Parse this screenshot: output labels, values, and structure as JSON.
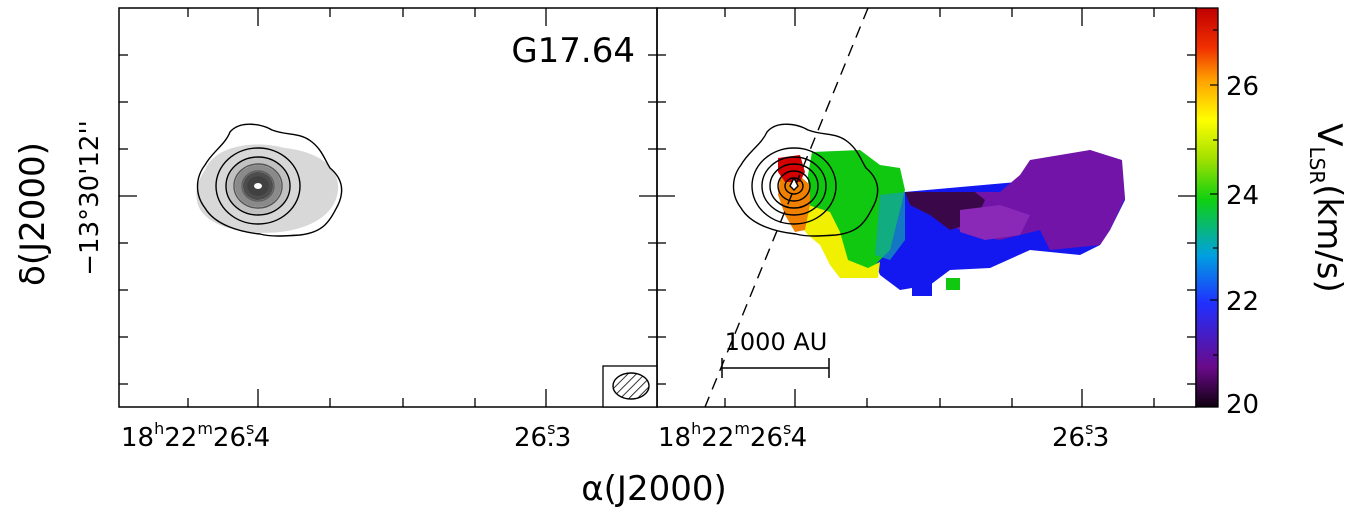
{
  "chart_data": [
    {
      "type": "heatmap",
      "panel": "left",
      "source_label": "G17.64",
      "description_shown": "dust continuum contours over grey-scale emission",
      "contour_levels_drawn": 6,
      "x_ticks": [
        "18h22m26.4s",
        "26.3s"
      ],
      "y_ticks": [
        "-13°30'12\""
      ],
      "ylabel": "δ(J2000)",
      "ylabel_sub": "−13°30'12''"
    },
    {
      "type": "heatmap",
      "panel": "right",
      "colormap": "rainbow",
      "colorbar": {
        "label": "V_LSR(km/s)",
        "label_main": "V",
        "label_sub": "LSR",
        "label_unit": "(km/s)",
        "range": [
          20,
          27.3
        ],
        "ticks": [
          "26",
          "24",
          "22",
          "20"
        ],
        "tick_values": [
          26,
          24,
          22,
          20
        ]
      },
      "scale_bar": "1000 AU",
      "x_ticks": [
        "18h22m26.4s",
        "26.3s"
      ],
      "dashed_line": true
    }
  ],
  "axes": {
    "xlabel": "α(J2000)",
    "ylabel": "δ(J2000)",
    "ylabel_tick": "−13°30'12''",
    "x_tick_left": {
      "main1": "18",
      "sup1": "h",
      "main2": "22",
      "sup2": "m",
      "main3": "26",
      "sup3": "s",
      "main4": ".4"
    },
    "x_tick_right": {
      "main1": "26",
      "sup1": "s",
      "main2": ".3"
    }
  },
  "labels": {
    "source": "G17.64",
    "scale_bar": "1000 AU",
    "cb_main": "V",
    "cb_sub": "LSR",
    "cb_unit": "(km/s)"
  },
  "colors": {
    "red": "#d40000",
    "orange": "#f08000",
    "yellow": "#f0f000",
    "green": "#00c000",
    "blue": "#1010f0",
    "purple": "#7010a0",
    "dark": "#300030",
    "grey": "#d8d8d8"
  }
}
